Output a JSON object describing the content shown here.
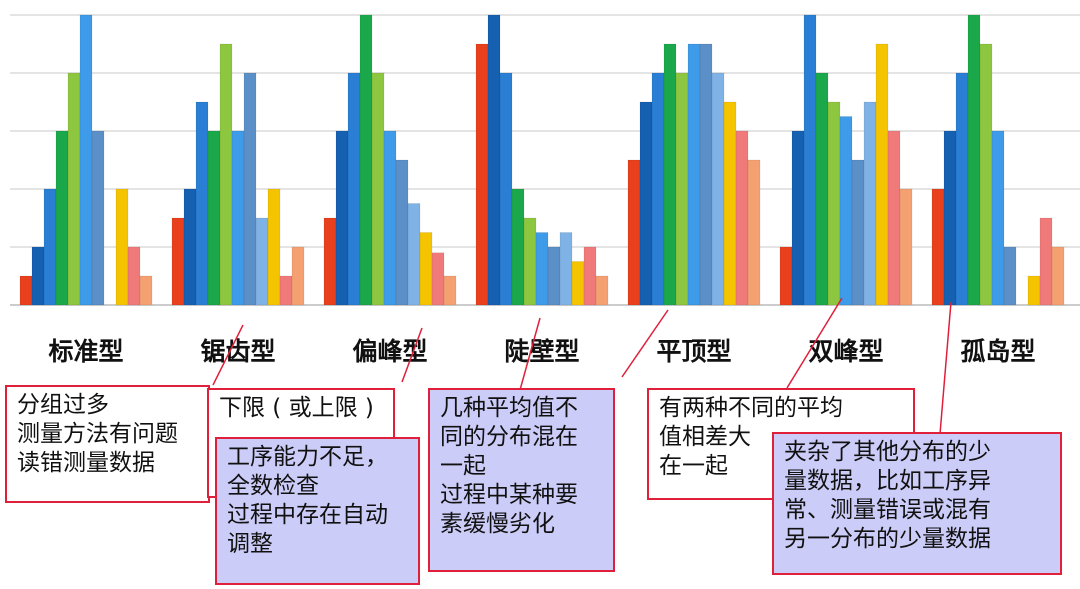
{
  "chart_data": {
    "type": "bar",
    "colors": [
      "#e8401c",
      "#1560b0",
      "#2a7fd4",
      "#1aa84a",
      "#8dc63f",
      "#3d9be9",
      "#5b8fc8",
      "#7fb2e5",
      "#f5c400",
      "#f07a7a",
      "#f4a070"
    ],
    "groups": [
      {
        "name": "标准型",
        "values": [
          0.5,
          1,
          2,
          3,
          4,
          5,
          3,
          null,
          2,
          1,
          0.5
        ]
      },
      {
        "name": "锯齿型",
        "values": [
          1.5,
          2,
          3.5,
          3,
          4.5,
          3,
          4,
          1.5,
          2,
          0.5,
          1
        ]
      },
      {
        "name": "偏峰型",
        "values": [
          1.5,
          3,
          4,
          5,
          4,
          3,
          2.5,
          1.75,
          1.25,
          0.9,
          0.5
        ]
      },
      {
        "name": "陡壁型",
        "values": [
          4.5,
          5,
          4,
          2,
          1.5,
          1.25,
          1,
          1.25,
          0.75,
          1,
          0.5
        ]
      },
      {
        "name": "平顶型",
        "values": [
          2.5,
          3.5,
          4,
          4.5,
          4,
          4.5,
          4.5,
          4,
          3.5,
          3,
          2.5
        ]
      },
      {
        "name": "双峰型",
        "values": [
          1,
          3,
          5,
          4,
          3.5,
          3.25,
          2.5,
          3.5,
          4.5,
          3,
          2
        ]
      },
      {
        "name": "孤岛型",
        "values": [
          2,
          3,
          4,
          5,
          4.5,
          3,
          1,
          null,
          0.5,
          1.5,
          1
        ]
      }
    ],
    "ylim": [
      0,
      5
    ],
    "yticks": [
      0,
      1,
      2,
      3,
      4,
      5
    ],
    "grid": true,
    "annotations": [
      {
        "lines": [
          "分组过多",
          "测量方法有问题",
          "读错测量数据"
        ]
      },
      {
        "lines": [
          "下限 ( 或上限 )"
        ]
      },
      {
        "lines": [
          "工序能力不足，",
          "全数检查",
          "过程中存在自动",
          "调整"
        ]
      },
      {
        "lines": [
          "几种平均值不",
          "同的分布混在",
          "一起",
          "过程中某种要",
          "素缓慢劣化"
        ]
      },
      {
        "lines": [
          "有两种不同的平均",
          "值相差大",
          "在一起"
        ]
      },
      {
        "lines": [
          "夹杂了其他分布的少",
          "量数据，比如工序异",
          "常、测量错误或混有",
          "另一分布的少量数据"
        ]
      }
    ]
  }
}
